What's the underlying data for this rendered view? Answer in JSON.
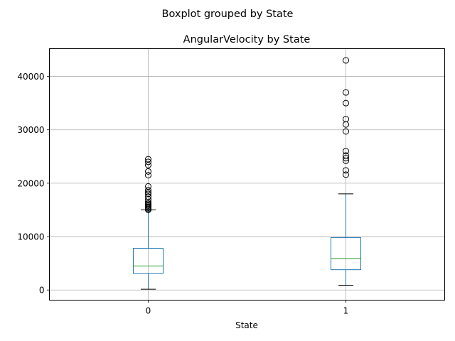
{
  "chart_data": {
    "type": "boxplot",
    "suptitle": "Boxplot grouped by State",
    "title": "AngularVelocity by State",
    "xlabel": "State",
    "ylabel": "",
    "ylim": [
      -1900,
      45200
    ],
    "yticks": [
      0,
      10000,
      20000,
      30000,
      40000
    ],
    "grid": true,
    "categories": [
      "0",
      "1"
    ],
    "boxes": [
      {
        "category": "0",
        "whisker_low": 150,
        "q1": 3100,
        "median": 4500,
        "q3": 7800,
        "whisker_high": 15000,
        "fliers": [
          15000,
          15200,
          15400,
          15600,
          15800,
          16000,
          16200,
          16500,
          17000,
          17500,
          18000,
          18300,
          18700,
          19400,
          21500,
          22200,
          23400,
          24000,
          24500
        ]
      },
      {
        "category": "1",
        "whisker_low": 900,
        "q1": 3800,
        "median": 5900,
        "q3": 9800,
        "whisker_high": 18000,
        "fliers": [
          21600,
          22400,
          24200,
          24700,
          25200,
          26000,
          29700,
          31000,
          32000,
          35000,
          37000,
          43000
        ]
      }
    ],
    "colors": {
      "box": "#1f77b4",
      "median": "#2ca02c",
      "cap": "#000000",
      "flier": "#000000",
      "grid": "#b0b0b0"
    }
  }
}
